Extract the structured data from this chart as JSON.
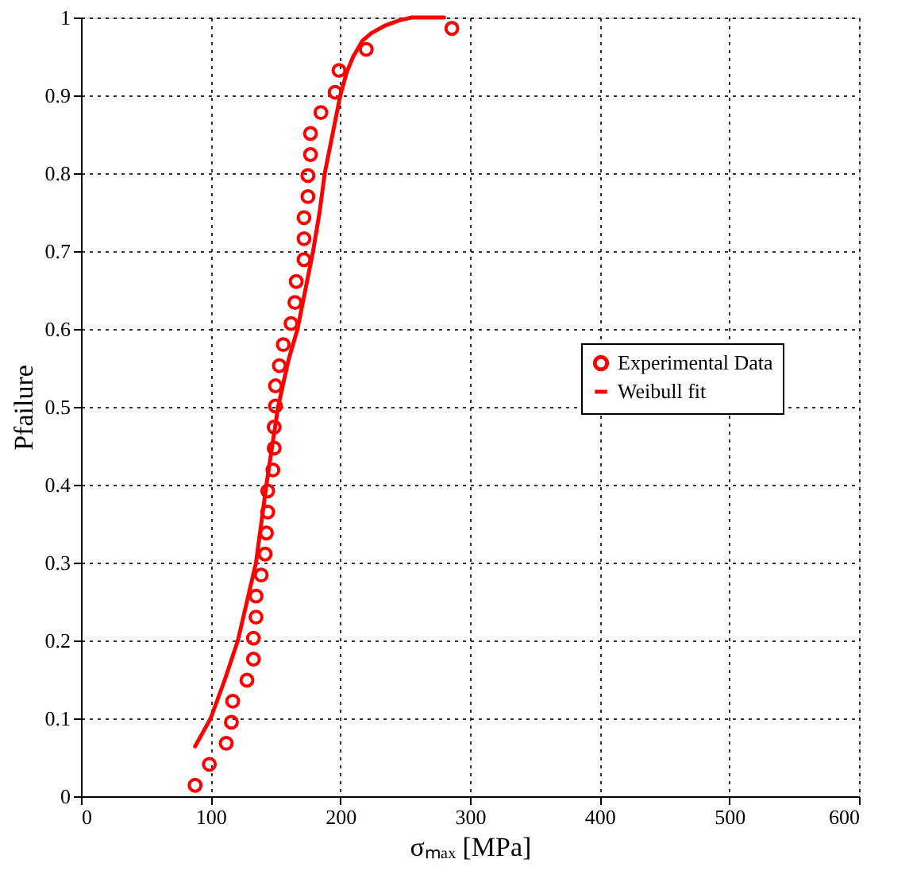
{
  "chart_data": {
    "type": "scatter",
    "xlabel": "σₘₐₓ [MPa]",
    "ylabel": "Pfailure",
    "xlim": [
      0,
      600
    ],
    "xticks": [
      0,
      100,
      200,
      300,
      400,
      500,
      600
    ],
    "ylim": [
      0,
      1
    ],
    "yticks": [
      0,
      0.1,
      0.2,
      0.3,
      0.4,
      0.5,
      0.6,
      0.7,
      0.8,
      0.9,
      1
    ],
    "grid": true,
    "legend": "right",
    "series": [
      {
        "name": "Experimental Data",
        "marker": "circle",
        "color": "#ff0000",
        "x": [
          88,
          99,
          112,
          116,
          117,
          128,
          133,
          133,
          135,
          135,
          139,
          142,
          143,
          144,
          144,
          148,
          149,
          149,
          150,
          150,
          153,
          156,
          162,
          165,
          166,
          172,
          172,
          172,
          175,
          175,
          177,
          177,
          185,
          196,
          199,
          220,
          286
        ],
        "values": [
          0.014,
          0.041,
          0.068,
          0.095,
          0.122,
          0.149,
          0.176,
          0.203,
          0.23,
          0.257,
          0.284,
          0.311,
          0.338,
          0.365,
          0.392,
          0.419,
          0.447,
          0.474,
          0.501,
          0.527,
          0.553,
          0.58,
          0.607,
          0.634,
          0.661,
          0.689,
          0.716,
          0.743,
          0.77,
          0.797,
          0.824,
          0.851,
          0.878,
          0.904,
          0.932,
          0.959,
          0.986
        ]
      },
      {
        "name": "Weibull fit",
        "type": "line",
        "line_style": "solid",
        "color": "#ff0000",
        "x": [
          88,
          100,
          111,
          121,
          128,
          135,
          143,
          152,
          160,
          167,
          173,
          179,
          184,
          188,
          194,
          200,
          205,
          210,
          217,
          224,
          235,
          245,
          255,
          265,
          280
        ],
        "values": [
          0.064,
          0.1,
          0.15,
          0.2,
          0.25,
          0.3,
          0.4,
          0.5,
          0.56,
          0.6,
          0.65,
          0.7,
          0.75,
          0.8,
          0.85,
          0.9,
          0.93,
          0.95,
          0.97,
          0.98,
          0.99,
          0.996,
          1,
          1,
          1
        ]
      }
    ]
  }
}
